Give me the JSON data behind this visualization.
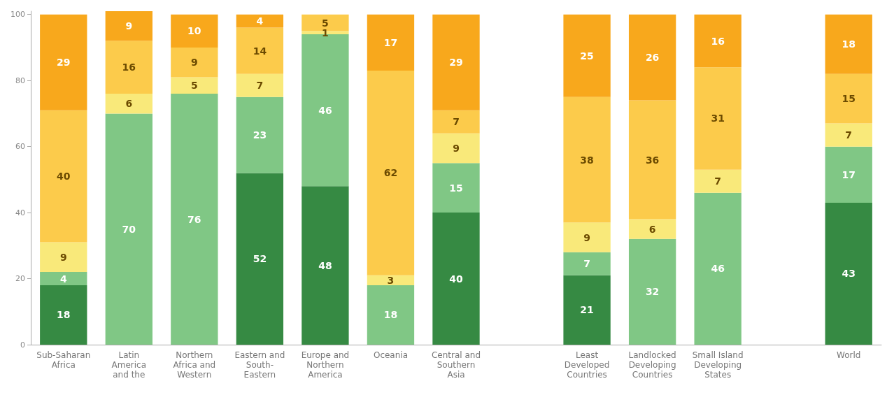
{
  "chart_data": {
    "type": "bar",
    "stacked": true,
    "data_labels": true,
    "grid": false,
    "categories": [
      "Sub-Saharan\nAfrica",
      "Latin\nAmerica\nand the",
      "Northern\nAfrica and\nWestern",
      "Eastern and\nSouth-\nEastern",
      "Europe and\nNorthern\nAmerica",
      "Oceania",
      "Central and\nSouthern\nAsia",
      null,
      "Least\nDeveloped\nCountries",
      "Landlocked\nDeveloping\nCountries",
      "Small Island\nDeveloping\nStates",
      null,
      "World"
    ],
    "ylim": [
      0,
      101
    ],
    "yticks": [
      0,
      20,
      40,
      60,
      80,
      100
    ],
    "series": [
      {
        "color": "#368a43",
        "values": [
          18,
          null,
          null,
          52,
          48,
          null,
          40,
          null,
          21,
          null,
          null,
          null,
          43
        ]
      },
      {
        "color": "#80c785",
        "values": [
          4,
          70,
          76,
          23,
          46,
          18,
          15,
          null,
          7,
          32,
          46,
          null,
          17
        ]
      },
      {
        "color": "#f9e97a",
        "values": [
          9,
          6,
          5,
          7,
          1,
          3,
          9,
          null,
          9,
          6,
          7,
          null,
          7
        ]
      },
      {
        "color": "#fccb4b",
        "values": [
          40,
          16,
          9,
          14,
          5,
          62,
          7,
          null,
          38,
          36,
          31,
          null,
          15
        ]
      },
      {
        "color": "#f8a81c",
        "values": [
          29,
          9,
          10,
          4,
          null,
          17,
          29,
          null,
          25,
          26,
          16,
          null,
          18
        ]
      }
    ]
  }
}
